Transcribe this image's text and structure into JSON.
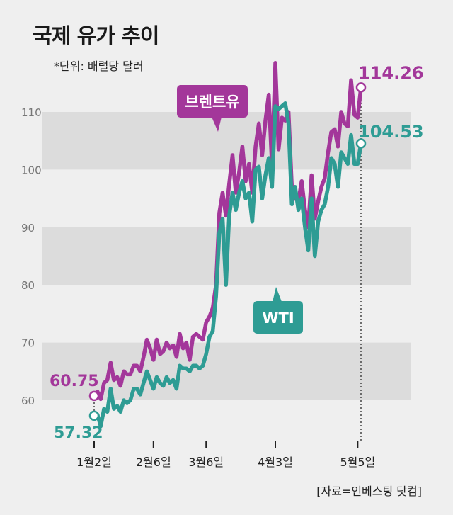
{
  "title": "국제 유가 추이",
  "subtitle": "*단위: 배럴당 달러",
  "source": "[자료=인베스팅 닷컴]",
  "colors": {
    "brent": "#a3379a",
    "wti": "#2e9c94",
    "band": "#dcdcdc",
    "background": "#efefef"
  },
  "chart_data": {
    "type": "line",
    "title": "국제 유가 추이",
    "unit": "*단위: 배럴당 달러",
    "y_ticks": [
      60,
      70,
      80,
      90,
      100,
      110
    ],
    "ylim": [
      55,
      120
    ],
    "x_ticks": [
      "1월2일",
      "2월6일",
      "3월6일",
      "4월3일",
      "5월5일"
    ],
    "grid": "alternating horizontal bands",
    "series": [
      {
        "name": "브렌트유",
        "start_label": "60.75",
        "end_label": "114.26",
        "values": [
          60.75,
          61.5,
          60.2,
          63,
          63.5,
          66.5,
          63.5,
          64,
          62.5,
          65,
          64.5,
          64.5,
          66,
          66,
          65,
          67.5,
          70.5,
          69,
          67,
          70.5,
          68,
          68.5,
          70,
          69,
          69.5,
          67.5,
          71.5,
          69,
          70,
          67,
          71,
          71.5,
          71,
          70.5,
          73.5,
          74.5,
          76,
          80,
          92.5,
          96,
          92,
          97.5,
          102.5,
          96,
          99.5,
          104,
          98,
          101,
          96,
          104,
          108,
          102.5,
          108.5,
          113,
          100.5,
          118.5,
          103.5,
          109,
          108.5,
          110,
          97,
          95,
          94.5,
          98,
          93,
          90,
          99,
          91.5,
          94.5,
          97,
          98.5,
          103,
          106.5,
          107,
          104,
          110,
          108,
          107.5,
          115.5,
          109.5,
          109,
          114.26
        ],
        "note": "values approximate, read from gridlines"
      },
      {
        "name": "WTI",
        "start_label": "57.32",
        "end_label": "104.53",
        "values": [
          57.32,
          57.5,
          55.5,
          58.5,
          58,
          62,
          58.5,
          59,
          58,
          60,
          59.5,
          60,
          62,
          62,
          61,
          63,
          65,
          63.5,
          62,
          64,
          63,
          62.5,
          64,
          63,
          63.5,
          62,
          66,
          65.5,
          65.5,
          65,
          66,
          66,
          65.5,
          66,
          68,
          71,
          72,
          78,
          89,
          91.5,
          80,
          92,
          96,
          93,
          96,
          98,
          95,
          96,
          91,
          100,
          100.5,
          95,
          99,
          102,
          97,
          111,
          110.5,
          111,
          111.5,
          108,
          94,
          97,
          93,
          95,
          90,
          86,
          95,
          85,
          91,
          93,
          94,
          97,
          102,
          101,
          97,
          103,
          102,
          101,
          106,
          101,
          101,
          104.53
        ],
        "note": "values approximate, read from gridlines"
      }
    ]
  }
}
